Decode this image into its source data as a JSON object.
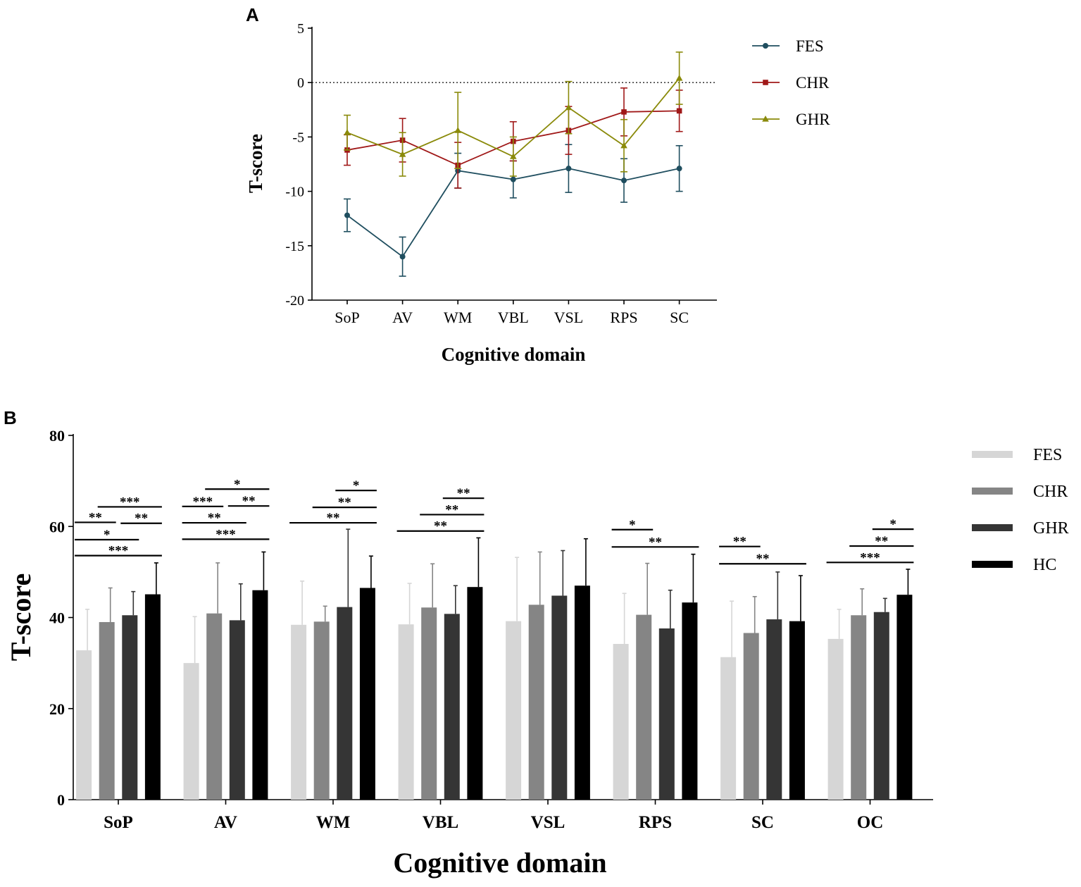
{
  "panels": [
    {
      "id": "A",
      "label": "A",
      "chart_data": {
        "type": "line",
        "title": "",
        "xlabel": "Cognitive domain",
        "ylabel": "T-score",
        "categories": [
          "SoP",
          "AV",
          "WM",
          "VBL",
          "VSL",
          "RPS",
          "SC"
        ],
        "ylim": [
          -20,
          5
        ],
        "yticks": [
          5,
          0,
          -5,
          -10,
          -15,
          -20
        ],
        "reference_line": 0,
        "legend_position": "top-right",
        "series": [
          {
            "name": "FES",
            "color": "#1f4e5f",
            "marker": "circle",
            "values": [
              -12.2,
              -16.0,
              -8.1,
              -8.9,
              -7.9,
              -9.0,
              -7.9
            ],
            "errors": [
              1.5,
              1.8,
              1.6,
              1.7,
              2.2,
              2.0,
              2.1
            ]
          },
          {
            "name": "CHR",
            "color": "#a01818",
            "marker": "square",
            "values": [
              -6.2,
              -5.3,
              -7.6,
              -5.4,
              -4.4,
              -2.7,
              -2.6
            ],
            "errors": [
              1.4,
              2.0,
              2.1,
              1.8,
              2.2,
              2.2,
              1.9
            ]
          },
          {
            "name": "GHR",
            "color": "#8a8a0a",
            "marker": "triangle",
            "values": [
              -4.6,
              -6.6,
              -4.4,
              -6.8,
              -2.3,
              -5.8,
              0.4
            ],
            "errors": [
              1.6,
              2.0,
              3.5,
              1.8,
              2.4,
              2.4,
              2.4
            ]
          }
        ]
      }
    },
    {
      "id": "B",
      "label": "B",
      "chart_data": {
        "type": "bar",
        "title": "",
        "xlabel": "Cognitive domain",
        "ylabel": "T-score",
        "categories": [
          "SoP",
          "AV",
          "WM",
          "VBL",
          "VSL",
          "RPS",
          "SC",
          "OC"
        ],
        "ylim": [
          0,
          80
        ],
        "yticks": [
          0,
          20,
          40,
          60,
          80
        ],
        "legend_position": "top-right",
        "series": [
          {
            "name": "FES",
            "color": "#d6d6d6",
            "values": [
              32.8,
              30.0,
              38.4,
              38.5,
              39.2,
              34.2,
              31.3,
              35.3
            ],
            "errors": [
              9.0,
              10.2,
              9.6,
              9.0,
              14.0,
              11.1,
              12.3,
              6.5
            ]
          },
          {
            "name": "CHR",
            "color": "#858585",
            "values": [
              39.0,
              40.9,
              39.1,
              42.2,
              42.8,
              40.6,
              36.6,
              40.5
            ],
            "errors": [
              7.5,
              11.1,
              3.4,
              9.6,
              11.6,
              11.3,
              8.0,
              5.8
            ]
          },
          {
            "name": "GHR",
            "color": "#353535",
            "values": [
              40.5,
              39.4,
              42.3,
              40.8,
              44.8,
              37.6,
              39.6,
              41.2
            ],
            "errors": [
              5.2,
              8.0,
              17.1,
              6.2,
              9.9,
              8.4,
              10.4,
              3.0
            ]
          },
          {
            "name": "HC",
            "color": "#000000",
            "values": [
              45.1,
              46.0,
              46.5,
              46.7,
              47.0,
              43.3,
              39.2,
              45.0
            ],
            "errors": [
              6.9,
              8.4,
              7.0,
              10.8,
              10.3,
              10.6,
              10.0,
              5.6
            ]
          }
        ],
        "significance": [
          {
            "category": "SoP",
            "from": "FES",
            "to": "CHR",
            "y": 60.9,
            "label": "**"
          },
          {
            "category": "SoP",
            "from": "FES",
            "to": "GHR",
            "y": 57.1,
            "label": "*"
          },
          {
            "category": "SoP",
            "from": "FES",
            "to": "HC",
            "y": 53.6,
            "label": "***"
          },
          {
            "category": "SoP",
            "from": "CHR",
            "to": "HC",
            "y": 64.3,
            "label": "***"
          },
          {
            "category": "SoP",
            "from": "GHR",
            "to": "HC",
            "y": 60.7,
            "label": "**"
          },
          {
            "category": "AV",
            "from": "FES",
            "to": "CHR",
            "y": 64.4,
            "label": "***"
          },
          {
            "category": "AV",
            "from": "FES",
            "to": "GHR",
            "y": 60.8,
            "label": "**"
          },
          {
            "category": "AV",
            "from": "FES",
            "to": "HC",
            "y": 57.2,
            "label": "***"
          },
          {
            "category": "AV",
            "from": "CHR",
            "to": "HC",
            "y": 68.2,
            "label": "*"
          },
          {
            "category": "AV",
            "from": "GHR",
            "to": "HC",
            "y": 64.5,
            "label": "**"
          },
          {
            "category": "WM",
            "from": "GHR",
            "to": "HC",
            "y": 67.9,
            "label": "*"
          },
          {
            "category": "WM",
            "from": "CHR",
            "to": "HC",
            "y": 64.2,
            "label": "**"
          },
          {
            "category": "WM",
            "from": "FES",
            "to": "HC",
            "y": 60.8,
            "label": "**"
          },
          {
            "category": "VBL",
            "from": "GHR",
            "to": "HC",
            "y": 66.2,
            "label": "**"
          },
          {
            "category": "VBL",
            "from": "CHR",
            "to": "HC",
            "y": 62.6,
            "label": "**"
          },
          {
            "category": "VBL",
            "from": "FES",
            "to": "HC",
            "y": 59.0,
            "label": "**"
          },
          {
            "category": "RPS",
            "from": "FES",
            "to": "CHR",
            "y": 59.3,
            "label": "*"
          },
          {
            "category": "RPS",
            "from": "FES",
            "to": "HC",
            "y": 55.5,
            "label": "**"
          },
          {
            "category": "SC",
            "from": "FES",
            "to": "CHR",
            "y": 55.6,
            "label": "**"
          },
          {
            "category": "SC",
            "from": "FES",
            "to": "HC",
            "y": 51.8,
            "label": "**"
          },
          {
            "category": "OC",
            "from": "GHR",
            "to": "HC",
            "y": 59.4,
            "label": "*"
          },
          {
            "category": "OC",
            "from": "CHR",
            "to": "HC",
            "y": 55.7,
            "label": "**"
          },
          {
            "category": "OC",
            "from": "FES",
            "to": "HC",
            "y": 52.1,
            "label": "***"
          }
        ]
      }
    }
  ]
}
